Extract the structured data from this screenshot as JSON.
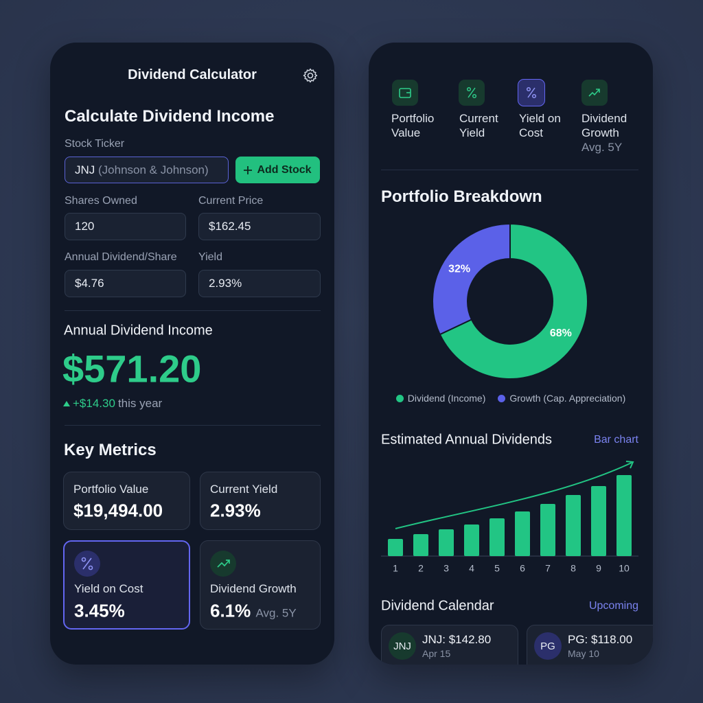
{
  "left": {
    "header_title": "Dividend Calculator",
    "section_title": "Calculate Dividend Income",
    "ticker_label": "Stock Ticker",
    "ticker_value": "JNJ",
    "ticker_hint": "(Johnson & Johnson)",
    "add_button": "Add Stock",
    "fields": [
      {
        "label": "Shares Owned",
        "value": "120"
      },
      {
        "label": "Current Price",
        "value": "$162.45"
      },
      {
        "label": "Annual Dividend/Share",
        "value": "$4.76"
      },
      {
        "label": "Yield",
        "value": "2.93%"
      }
    ],
    "income": {
      "label": "Annual Dividend Income",
      "value": "$571.20",
      "change": "+$14.30",
      "change_note": "this year"
    },
    "metrics_title": "Key Metrics",
    "metrics": [
      {
        "label": "Portfolio Value",
        "value": "$19,494.00"
      },
      {
        "label": "Current Yield",
        "value": "2.93%"
      },
      {
        "label": "Yield on Cost",
        "value": "3.45%"
      },
      {
        "label": "Dividend Growth",
        "value": "6.1%",
        "note": "Avg. 5Y"
      }
    ]
  },
  "right": {
    "tabs": [
      {
        "label": "Portfolio Value"
      },
      {
        "label": "Current Yield"
      },
      {
        "label": "Yield on Cost"
      },
      {
        "label": "Dividend Growth",
        "note": "Avg. 5Y"
      }
    ],
    "breakdown": {
      "type": "pie",
      "title": "Portfolio Breakdown",
      "categories": [
        "Dividend (Income)",
        "Growth (Cap. Appreciation)"
      ],
      "values": [
        68,
        32
      ],
      "value_labels": [
        "68%",
        "32%"
      ],
      "colors": [
        "#22c584",
        "#5b61e8"
      ]
    },
    "dividends": {
      "type": "bar",
      "title": "Estimated Annual Dividends",
      "subtitle": "Bar chart",
      "categories": [
        "1",
        "2",
        "3",
        "4",
        "5",
        "6",
        "7",
        "8",
        "9",
        "10"
      ],
      "values": [
        25,
        32,
        39,
        46,
        55,
        65,
        76,
        89,
        102,
        118
      ],
      "ylim": [
        0,
        120
      ],
      "color": "#22c584"
    },
    "calendar": {
      "title": "Dividend Calendar",
      "link": "Upcoming",
      "items": [
        {
          "badge": "JNJ",
          "label": "JNJ: $142.80",
          "date": "Apr 15"
        },
        {
          "badge": "PG",
          "label": "PG: $118.00",
          "date": "May 10"
        }
      ]
    }
  }
}
